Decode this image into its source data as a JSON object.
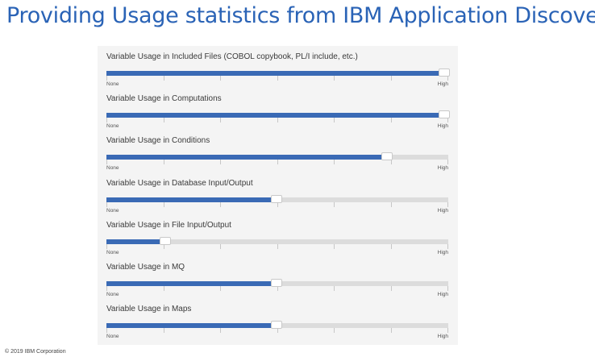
{
  "page": {
    "title": "Providing Usage statistics from IBM Application Discovery",
    "copyright": "© 2019 IBM Corporation"
  },
  "colors": {
    "title": "#2a63b6",
    "slider_fill": "#3a6ab5",
    "slider_track": "#dcdcdc",
    "panel_background": "#f4f4f4"
  },
  "sliders": [
    {
      "label": "Variable Usage in Included Files (COBOL copybook, PL/I include, etc.)",
      "min_label": "None",
      "max_label": "High",
      "value": 1.0
    },
    {
      "label": "Variable Usage in Computations",
      "min_label": "None",
      "max_label": "High",
      "value": 1.0
    },
    {
      "label": "Variable Usage in Conditions",
      "min_label": "None",
      "max_label": "High",
      "value": 0.83
    },
    {
      "label": "Variable Usage in Database Input/Output",
      "min_label": "None",
      "max_label": "High",
      "value": 0.5
    },
    {
      "label": "Variable Usage in File Input/Output",
      "min_label": "None",
      "max_label": "High",
      "value": 0.17
    },
    {
      "label": "Variable Usage in MQ",
      "min_label": "None",
      "max_label": "High",
      "value": 0.5
    },
    {
      "label": "Variable Usage in Maps",
      "min_label": "None",
      "max_label": "High",
      "value": 0.5
    }
  ]
}
